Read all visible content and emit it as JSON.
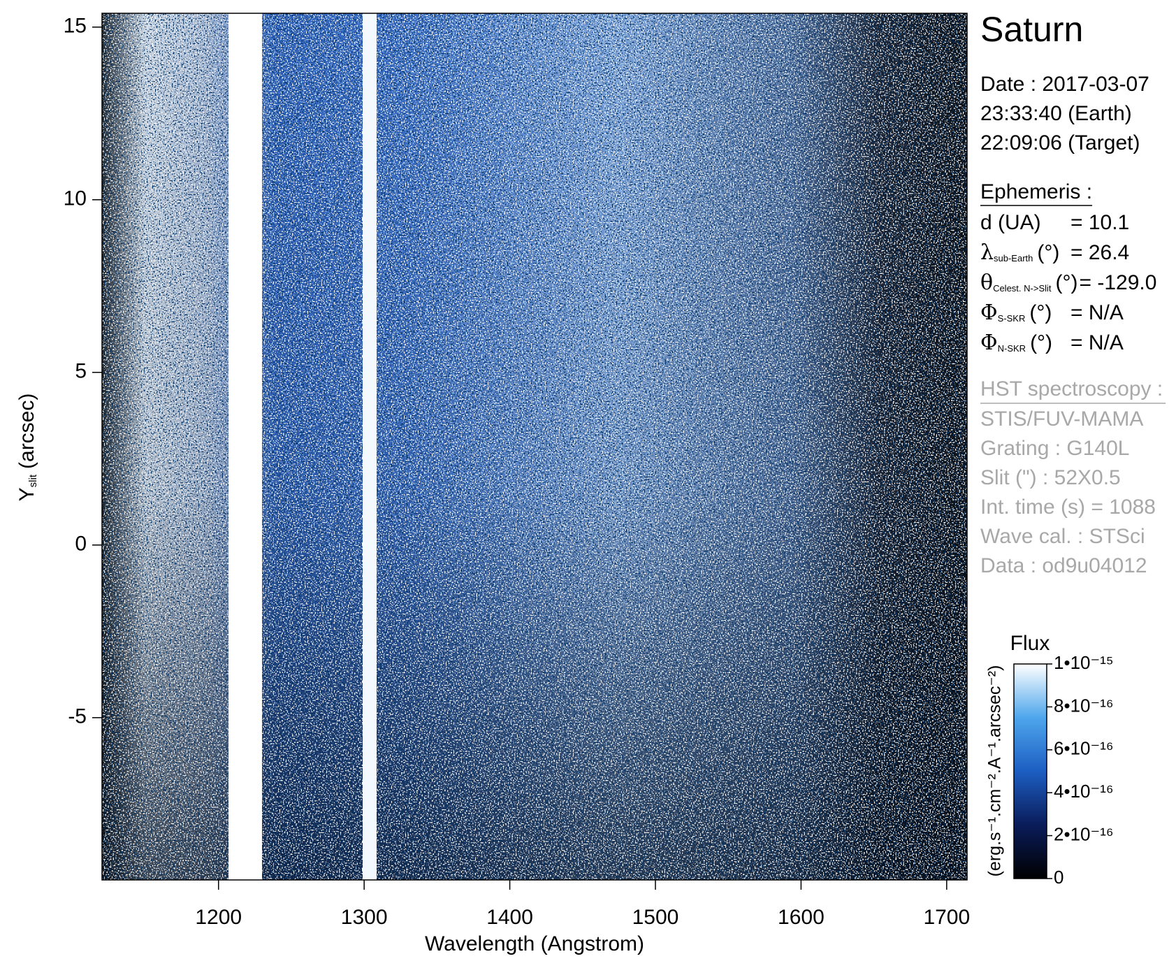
{
  "chart_data": {
    "type": "heatmap",
    "xlabel": "Wavelength (Angstrom)",
    "ylabel": {
      "text": "Y",
      "sub": "slit",
      "unit": "(arcsec)"
    },
    "xlim": [
      1120,
      1714
    ],
    "ylim": [
      -9.7,
      15.4
    ],
    "xticks": [
      1200,
      1300,
      1400,
      1500,
      1600,
      1700
    ],
    "yticks": [
      -5,
      0,
      5,
      10,
      15
    ],
    "colorbar": {
      "title": "Flux",
      "unit": "(erg.s⁻¹.cm⁻².A⁻¹.arcsec⁻²)",
      "clim": [
        0,
        1e-15
      ],
      "ticks": [
        0,
        {
          "value": 2e-16,
          "label": "2•10⁻¹⁶"
        },
        {
          "value": 4e-16,
          "label": "4•10⁻¹⁶"
        },
        {
          "value": 6e-16,
          "label": "6•10⁻¹⁶"
        },
        {
          "value": 8e-16,
          "label": "8•10⁻¹⁶"
        },
        {
          "value": 1e-15,
          "label": "1•10⁻¹⁵"
        }
      ],
      "colors": [
        "#000000",
        "#0a1c5a",
        "#1c5ec2",
        "#4ea6ec",
        "#ffffff"
      ]
    }
  },
  "info": {
    "title": "Saturn",
    "date": [
      "Date : 2017-03-07",
      "23:33:40 (Earth)",
      "22:09:06 (Target)"
    ],
    "ephemeris": {
      "heading": "Ephemeris :",
      "rows": [
        {
          "label": "d (UA)",
          "value": "= 10.1"
        },
        {
          "symbol": "λ",
          "sub": "sub-Earth",
          "unit": "(°)",
          "value": "= 26.4"
        },
        {
          "symbol": "θ",
          "sub": "Celest. N->Slit",
          "unit": "(°)",
          "value": "= -129.0"
        },
        {
          "symbol": "Φ",
          "sub": "S-SKR",
          "unit": "(°)",
          "value": "= N/A"
        },
        {
          "symbol": "Φ",
          "sub": "N-SKR",
          "unit": "(°)",
          "value": "= N/A"
        }
      ]
    },
    "hst": {
      "heading": "HST spectroscopy :",
      "lines": [
        "STIS/FUV-MAMA",
        "Grating : G140L",
        "Slit (\") : 52X0.5",
        "Int. time (s) = 1088",
        "Wave cal. : STSci",
        "Data : od9u04012"
      ]
    }
  }
}
